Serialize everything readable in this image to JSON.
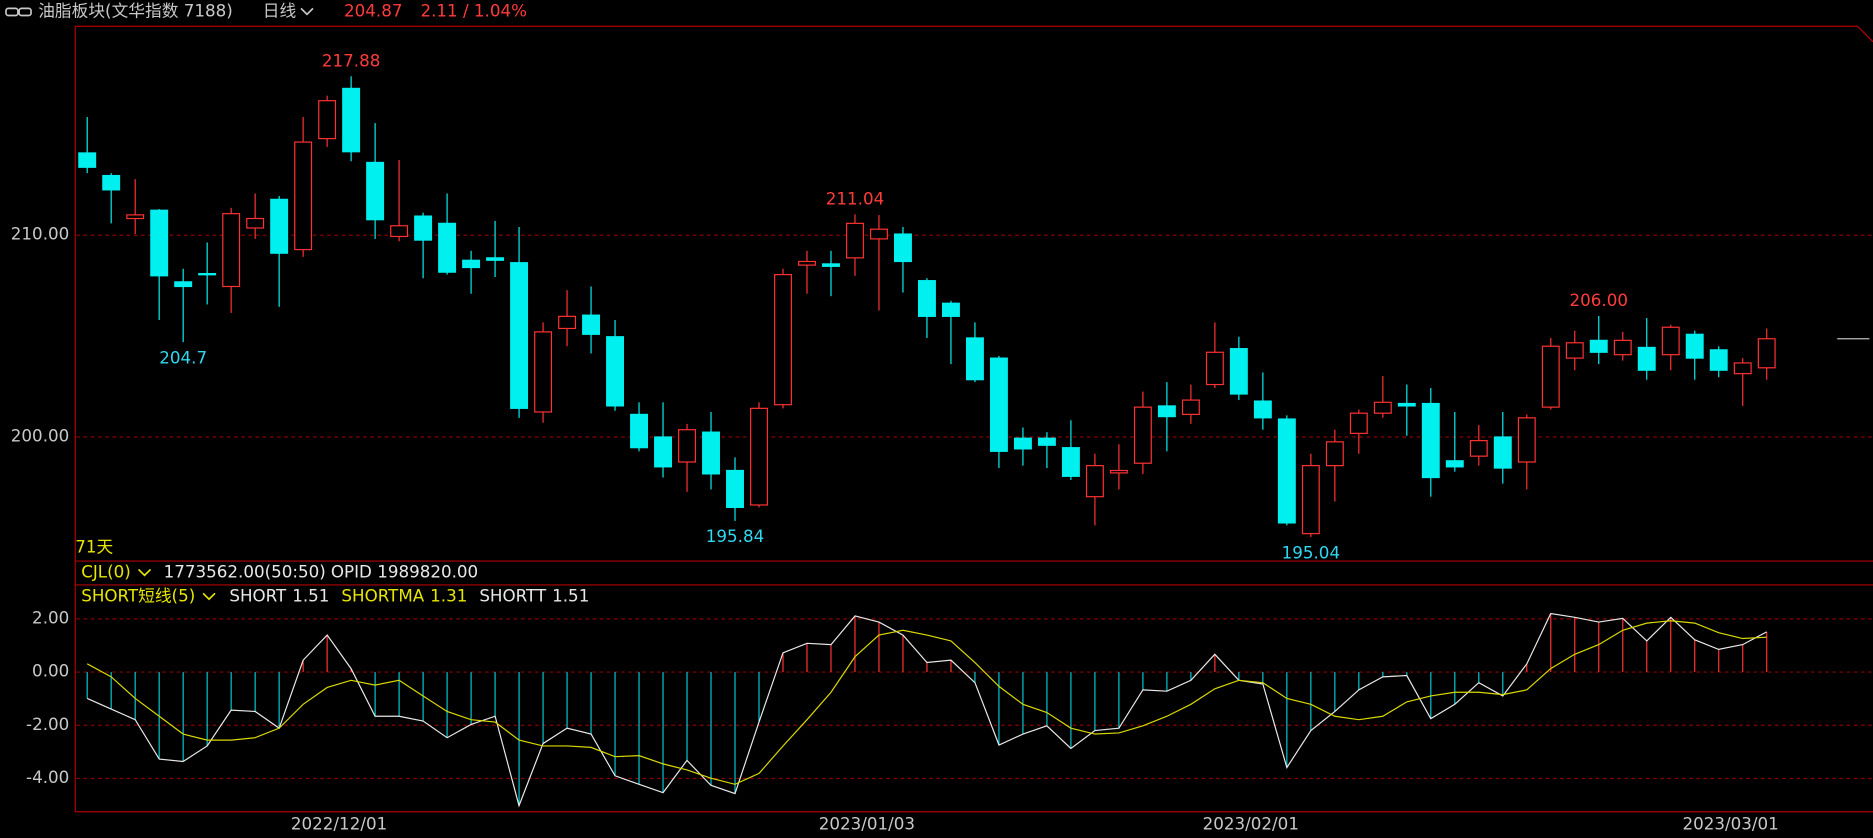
{
  "header": {
    "title": "油脂板块(文华指数 7188)",
    "period": "日线",
    "price": "204.87",
    "change": "2.11 / 1.04%"
  },
  "cjl": {
    "name": "CJL(0)",
    "value": "1773562.00(50:50)",
    "opid": "OPID 1989820.00"
  },
  "chart_data": [
    {
      "type": "candlestick",
      "days_label": "71天",
      "categories": [
        null,
        null,
        null,
        null,
        null,
        null,
        null,
        null,
        null,
        null,
        "2022/12/01",
        null,
        null,
        null,
        null,
        null,
        null,
        null,
        null,
        null,
        null,
        null,
        null,
        null,
        null,
        null,
        null,
        null,
        null,
        null,
        null,
        null,
        "2023/01/03",
        null,
        null,
        null,
        null,
        null,
        null,
        null,
        null,
        null,
        null,
        null,
        null,
        null,
        null,
        null,
        "2023/02/01",
        null,
        null,
        null,
        null,
        null,
        null,
        null,
        null,
        null,
        null,
        null,
        null,
        null,
        null,
        null,
        null,
        null,
        null,
        null,
        "2023/03/01",
        null,
        null
      ],
      "open": [
        214.08,
        212.96,
        210.83,
        211.24,
        207.69,
        208.1,
        207.46,
        210.36,
        211.78,
        209.29,
        214.79,
        217.28,
        213.61,
        209.94,
        210.95,
        210.59,
        208.76,
        208.88,
        208.64,
        201.24,
        205.38,
        206.04,
        204.97,
        201.12,
        200.0,
        198.76,
        200.24,
        198.34,
        196.63,
        201.6,
        208.52,
        208.58,
        208.88,
        209.82,
        210.06,
        207.75,
        206.63,
        204.91,
        203.91,
        199.94,
        199.94,
        199.47,
        197.04,
        198.22,
        198.7,
        201.54,
        201.12,
        202.6,
        204.38,
        201.78,
        200.89,
        195.21,
        198.58,
        200.18,
        201.18,
        201.66,
        201.66,
        198.82,
        199.05,
        200.0,
        198.76,
        201.48,
        203.91,
        204.79,
        204.08,
        204.44,
        204.08,
        205.09,
        204.32,
        203.14,
        203.43
      ],
      "high": [
        215.86,
        213.08,
        212.78,
        211.3,
        208.34,
        209.64,
        211.36,
        212.07,
        211.95,
        215.86,
        216.92,
        217.88,
        215.56,
        213.73,
        211.12,
        212.07,
        209.23,
        210.71,
        210.41,
        205.68,
        207.28,
        207.46,
        205.8,
        201.72,
        201.72,
        200.65,
        201.24,
        198.99,
        201.72,
        208.34,
        209.23,
        209.23,
        211.04,
        211.0,
        210.41,
        207.87,
        206.75,
        205.68,
        204.02,
        200.47,
        200.24,
        200.83,
        199.17,
        199.64,
        202.25,
        202.72,
        202.6,
        205.68,
        204.97,
        203.2,
        201.07,
        199.17,
        200.36,
        201.36,
        203.02,
        202.6,
        202.43,
        201.24,
        200.59,
        201.24,
        201.12,
        204.91,
        205.27,
        206.0,
        205.21,
        205.9,
        205.56,
        205.27,
        204.5,
        203.91,
        205.38
      ],
      "low": [
        213.08,
        210.59,
        210.06,
        205.8,
        204.7,
        206.57,
        206.15,
        209.82,
        206.45,
        208.93,
        214.38,
        213.67,
        209.82,
        209.7,
        207.87,
        208.05,
        207.1,
        207.93,
        200.95,
        200.71,
        204.5,
        204.14,
        201.3,
        199.29,
        197.99,
        197.28,
        197.4,
        195.84,
        196.51,
        201.42,
        207.1,
        206.98,
        207.99,
        206.27,
        207.16,
        204.91,
        203.61,
        202.72,
        198.46,
        198.58,
        198.46,
        197.87,
        195.62,
        197.4,
        198.17,
        199.29,
        200.65,
        202.43,
        201.83,
        200.36,
        195.62,
        195.04,
        196.8,
        199.17,
        200.95,
        200.06,
        197.04,
        198.28,
        198.58,
        197.69,
        197.4,
        201.36,
        203.31,
        203.61,
        203.79,
        202.84,
        203.31,
        202.84,
        202.96,
        201.54,
        202.84
      ],
      "close": [
        213.37,
        212.25,
        211.01,
        207.99,
        207.46,
        208.05,
        211.07,
        210.83,
        209.11,
        214.62,
        216.67,
        214.14,
        210.77,
        210.47,
        209.76,
        208.17,
        208.4,
        208.76,
        201.42,
        205.21,
        205.98,
        205.09,
        201.54,
        199.47,
        198.52,
        200.36,
        198.17,
        196.51,
        201.42,
        208.05,
        208.7,
        208.46,
        210.59,
        210.3,
        208.7,
        205.98,
        205.98,
        202.84,
        199.29,
        199.41,
        199.59,
        198.05,
        198.58,
        198.34,
        201.48,
        201.01,
        201.83,
        204.2,
        202.13,
        200.95,
        195.74,
        198.58,
        199.76,
        201.18,
        201.72,
        201.54,
        197.99,
        198.52,
        199.82,
        198.46,
        200.95,
        204.5,
        204.67,
        204.2,
        204.79,
        203.31,
        205.44,
        203.91,
        203.31,
        203.67,
        204.87
      ],
      "up_color": "#ff3232",
      "down_color": "#00f0f0",
      "ylim": [
        193.85,
        220.36
      ],
      "yticks": [
        {
          "value": 200,
          "label": "200.00"
        },
        {
          "value": 210,
          "label": "210.00"
        }
      ],
      "grid": true,
      "annotations": [
        217.88,
        204.7,
        211.04,
        195.84,
        {
          "value": 206,
          "label": "206.00"
        },
        195.04
      ]
    },
    {
      "type": "indicator",
      "title": "SHORT短线(5)",
      "ylim": [
        -5.25,
        3.23
      ],
      "yticks": [
        {
          "value": 2,
          "label": "2.00"
        },
        {
          "value": 0,
          "label": "0.00"
        },
        {
          "value": -2,
          "label": "-2.00"
        },
        {
          "value": -4,
          "label": "-4.00"
        }
      ],
      "grid": true,
      "series": [
        {
          "name": "SHORT",
          "color": "#e8e8e8",
          "current": "1.51",
          "values": [
            -0.99,
            -1.39,
            -1.79,
            -3.27,
            -3.36,
            -2.78,
            -1.43,
            -1.48,
            -2.11,
            0.45,
            1.39,
            0.13,
            -1.66,
            -1.66,
            -1.84,
            -2.47,
            -1.97,
            -1.66,
            -5.02,
            -2.69,
            -2.11,
            -2.33,
            -3.9,
            -4.22,
            -4.53,
            -3.32,
            -4.26,
            -4.57,
            -1.88,
            0.72,
            1.08,
            1.03,
            2.11,
            1.88,
            1.39,
            0.36,
            0.45,
            -0.4,
            -2.74,
            -2.33,
            -2.02,
            -2.87,
            -2.2,
            -2.11,
            -0.67,
            -0.72,
            -0.31,
            0.67,
            -0.31,
            -0.45,
            -3.59,
            -2.2,
            -1.48,
            -0.67,
            -0.18,
            -0.13,
            -1.75,
            -1.21,
            -0.4,
            -0.9,
            0.31,
            2.2,
            2.06,
            1.88,
            2.02,
            1.17,
            2.06,
            1.21,
            0.85,
            1.03,
            1.51
          ]
        },
        {
          "name": "SHORTMA",
          "color": "#d8d800",
          "current": "1.31",
          "values": [
            0.31,
            -0.18,
            -0.99,
            -1.66,
            -2.33,
            -2.56,
            -2.56,
            -2.47,
            -2.11,
            -1.21,
            -0.58,
            -0.31,
            -0.49,
            -0.31,
            -0.9,
            -1.48,
            -1.79,
            -1.88,
            -2.56,
            -2.78,
            -2.78,
            -2.83,
            -3.18,
            -3.14,
            -3.45,
            -3.68,
            -3.99,
            -4.22,
            -3.81,
            -2.78,
            -1.79,
            -0.76,
            0.58,
            1.39,
            1.57,
            1.39,
            1.17,
            0.36,
            -0.54,
            -1.21,
            -1.52,
            -2.11,
            -2.33,
            -2.29,
            -2.02,
            -1.66,
            -1.21,
            -0.63,
            -0.31,
            -0.4,
            -0.99,
            -1.21,
            -1.66,
            -1.79,
            -1.66,
            -1.12,
            -0.9,
            -0.76,
            -0.76,
            -0.85,
            -0.67,
            0.13,
            0.67,
            1.03,
            1.57,
            1.84,
            1.93,
            1.84,
            1.48,
            1.26,
            1.31
          ]
        }
      ],
      "extra_legend": {
        "name": "SHORTT",
        "current": "1.51"
      },
      "up_color": "#ff3232",
      "down_color": "#00c8d0"
    }
  ]
}
